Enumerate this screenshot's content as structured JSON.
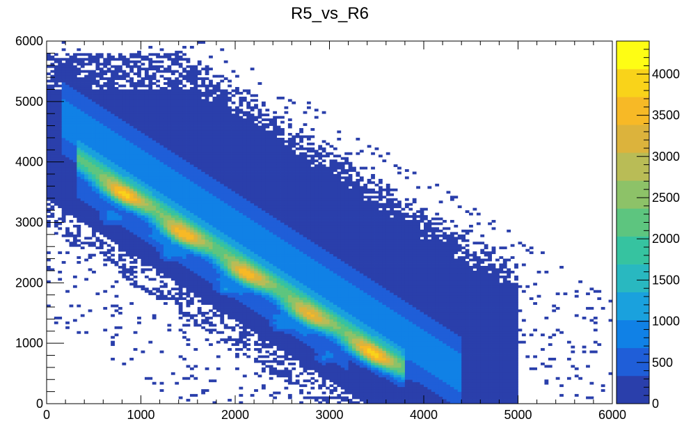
{
  "chart_data": {
    "type": "heatmap",
    "title": "R5_vs_R6",
    "xlabel": "",
    "ylabel": "",
    "xlim": [
      0,
      6000
    ],
    "ylim": [
      0,
      6000
    ],
    "x_ticks": [
      0,
      1000,
      2000,
      3000,
      4000,
      5000,
      6000
    ],
    "y_ticks": [
      0,
      1000,
      2000,
      3000,
      4000,
      5000,
      6000
    ],
    "x_tick_labels": [
      "0",
      "1000",
      "2000",
      "3000",
      "4000",
      "5000",
      "6000"
    ],
    "y_tick_labels": [
      "0",
      "1000",
      "2000",
      "3000",
      "4000",
      "5000",
      "6000"
    ],
    "bins": [
      150,
      150
    ],
    "zlim": [
      0,
      4400
    ],
    "colorbar_ticks": [
      0,
      500,
      1000,
      1500,
      2000,
      2500,
      3000,
      3500,
      4000
    ],
    "colorbar_tick_labels": [
      "0",
      "500",
      "1000",
      "1500",
      "2000",
      "2500",
      "3000",
      "3500",
      "4000"
    ],
    "colormap": [
      "#2a3fab",
      "#1f5ed8",
      "#1081e6",
      "#1aa1dd",
      "#29b8c0",
      "#36c3a0",
      "#5dc57f",
      "#8dc268",
      "#b9bc56",
      "#dcb33c",
      "#f7b926",
      "#f9d31a",
      "#fefd14"
    ],
    "features": {
      "main_band": {
        "slope": -1,
        "intercept": 4380,
        "peak_spots": [
          [
            800,
            3450,
            3900
          ],
          [
            1430,
            2780,
            4000
          ],
          [
            2100,
            2120,
            3800
          ],
          [
            2760,
            1450,
            3700
          ],
          [
            3430,
            820,
            3950
          ]
        ],
        "x_range": [
          320,
          3800
        ]
      },
      "secondary_band": {
        "slope": -1,
        "intercept": 3860,
        "spots": [
          [
            660,
            3050
          ],
          [
            1280,
            2460
          ],
          [
            1880,
            1890
          ],
          [
            2470,
            1290
          ],
          [
            2930,
            740
          ]
        ]
      },
      "halo_band": {
        "slope": -1,
        "intercept": 4900,
        "x_range": [
          150,
          4400
        ]
      },
      "low_density_region": "broad diffuse distribution filling the triangle below the band, sparse above x+y≈7200 and below x+y≈3000"
    },
    "grid": false,
    "legend": "colorbar-right"
  }
}
